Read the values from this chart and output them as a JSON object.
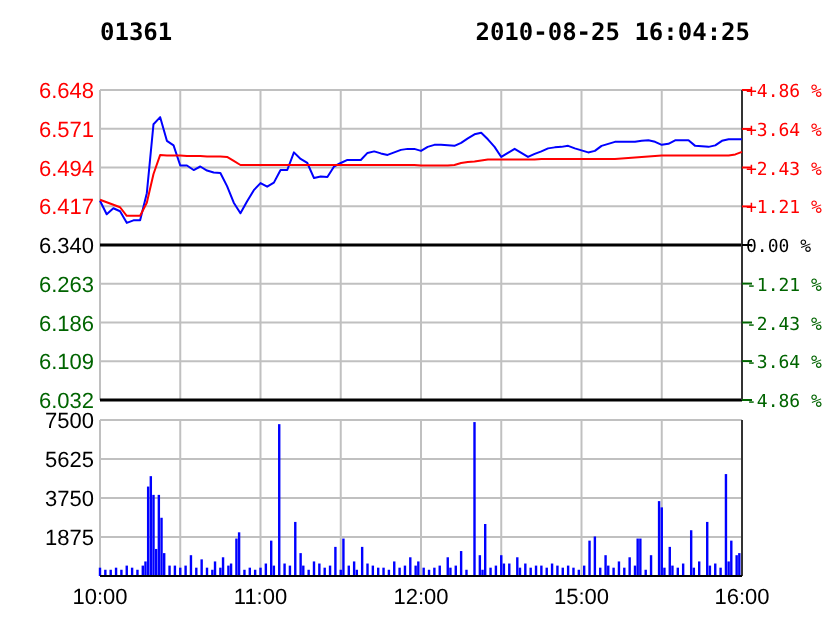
{
  "chart_data": [
    {
      "type": "line",
      "title": "01361",
      "annotations": [
        "2010-08-25 16:04:25"
      ],
      "tick_labels": "y",
      "grid": true,
      "categories": [
        null,
        null,
        null,
        null,
        null,
        null,
        null,
        null,
        null,
        null,
        null,
        null,
        null,
        null,
        null,
        null,
        null,
        null,
        null,
        null,
        null,
        null,
        null,
        null,
        null,
        null,
        null,
        null,
        null,
        null,
        null,
        null,
        null,
        null,
        null,
        null,
        null,
        null,
        null,
        null,
        null,
        null,
        null,
        null,
        null,
        null,
        null,
        null,
        null,
        null,
        null,
        null,
        null,
        null,
        null,
        null,
        null,
        null,
        null,
        null,
        null,
        null,
        null,
        null,
        null,
        null,
        null,
        null,
        null,
        null,
        null,
        null,
        null,
        null,
        null,
        null,
        null,
        null,
        null,
        null,
        null,
        null,
        null,
        null,
        null,
        null,
        null,
        null,
        null,
        null,
        null,
        null,
        null,
        null,
        null,
        null,
        null
      ],
      "ylim": [
        6.032,
        6.648
      ],
      "yticks": [
        6.032,
        6.109,
        6.186,
        6.263,
        {
          "value": 6.34,
          "label": "6.340"
        },
        6.417,
        6.494,
        6.571,
        6.648
      ],
      "y2lim": [
        -4.86,
        4.86
      ],
      "y2ticks": [
        {
          "value": -4.86,
          "label": "-4.86 %"
        },
        {
          "value": -3.64,
          "label": "-3.64 %"
        },
        {
          "value": -2.43,
          "label": "-2.43 %"
        },
        {
          "value": -1.21,
          "label": "-1.21 %"
        },
        {
          "value": 0,
          "label": "0.00 %"
        },
        {
          "value": 1.21,
          "label": "+1.21 %"
        },
        {
          "value": 2.43,
          "label": "+2.43 %"
        },
        {
          "value": 3.64,
          "label": "+3.64 %"
        },
        {
          "value": 4.86,
          "label": "+4.86 %"
        }
      ],
      "ref_lines": [
        {
          "axis": "y",
          "value": 6.34,
          "color": "#000000"
        }
      ],
      "series": [
        {
          "color": "#0000ff",
          "values": [
            6.428,
            6.401,
            6.413,
            6.407,
            6.384,
            6.389,
            6.389,
            6.443,
            6.58,
            6.594,
            6.547,
            6.538,
            6.498,
            6.498,
            6.489,
            6.496,
            6.488,
            6.484,
            6.483,
            6.457,
            6.424,
            6.403,
            6.427,
            6.449,
            6.463,
            6.456,
            6.464,
            6.489,
            6.489,
            6.524,
            6.511,
            6.503,
            6.473,
            6.476,
            6.475,
            6.496,
            6.503,
            6.509,
            6.509,
            6.509,
            6.523,
            6.526,
            6.522,
            6.519,
            6.524,
            6.529,
            6.531,
            6.531,
            6.527,
            6.535,
            6.539,
            6.539,
            6.538,
            6.537,
            6.543,
            6.552,
            6.56,
            6.563,
            6.55,
            6.535,
            6.515,
            6.523,
            6.531,
            6.523,
            6.515,
            6.521,
            6.526,
            6.532,
            6.534,
            6.535,
            6.537,
            6.532,
            6.528,
            6.524,
            6.527,
            6.537,
            6.541,
            6.545,
            6.545,
            6.545,
            6.545,
            6.547,
            6.548,
            6.545,
            6.539,
            6.541,
            6.548,
            6.548,
            6.548,
            6.537,
            6.536,
            6.535,
            6.538,
            6.547,
            6.55,
            6.55,
            6.55
          ]
        },
        {
          "color": "#ff0000",
          "values": [
            6.43,
            6.425,
            6.42,
            6.415,
            6.398,
            6.398,
            6.398,
            6.424,
            6.481,
            6.519,
            6.518,
            6.518,
            6.518,
            6.517,
            6.517,
            6.517,
            6.516,
            6.516,
            6.516,
            6.515,
            6.507,
            6.499,
            6.499,
            6.499,
            6.499,
            6.499,
            6.499,
            6.499,
            6.499,
            6.499,
            6.499,
            6.499,
            6.499,
            6.499,
            6.499,
            6.499,
            6.499,
            6.499,
            6.499,
            6.499,
            6.499,
            6.499,
            6.499,
            6.499,
            6.499,
            6.499,
            6.499,
            6.499,
            6.498,
            6.498,
            6.498,
            6.498,
            6.498,
            6.499,
            6.503,
            6.505,
            6.506,
            6.508,
            6.51,
            6.51,
            6.51,
            6.51,
            6.51,
            6.51,
            6.51,
            6.51,
            6.511,
            6.511,
            6.511,
            6.511,
            6.511,
            6.511,
            6.511,
            6.511,
            6.511,
            6.511,
            6.511,
            6.511,
            6.512,
            6.513,
            6.514,
            6.515,
            6.516,
            6.517,
            6.518,
            6.518,
            6.518,
            6.518,
            6.518,
            6.518,
            6.518,
            6.518,
            6.518,
            6.518,
            6.518,
            6.52,
            6.525
          ]
        }
      ]
    },
    {
      "type": "bar",
      "color": "#0000ff",
      "grid": true,
      "categories": [
        "10:00",
        null,
        null,
        null,
        null,
        null,
        null,
        null,
        null,
        null,
        null,
        null,
        null,
        null,
        null,
        null,
        null,
        null,
        null,
        null,
        null,
        null,
        null,
        null,
        null,
        null,
        null,
        null,
        null,
        null,
        null,
        null,
        null,
        null,
        null,
        null,
        null,
        null,
        null,
        null,
        null,
        null,
        null,
        null,
        null,
        null,
        null,
        null,
        null,
        null,
        null,
        null,
        null,
        null,
        null,
        null,
        null,
        null,
        null,
        null,
        "11:00",
        null,
        null,
        null,
        null,
        null,
        null,
        null,
        null,
        null,
        null,
        null,
        null,
        null,
        null,
        null,
        null,
        null,
        null,
        null,
        null,
        null,
        null,
        null,
        null,
        null,
        null,
        null,
        null,
        null,
        null,
        null,
        null,
        null,
        null,
        null,
        null,
        null,
        null,
        null,
        null,
        null,
        null,
        null,
        null,
        null,
        null,
        null,
        null,
        null,
        null,
        null,
        null,
        null,
        null,
        null,
        null,
        null,
        null,
        null,
        "12:00",
        null,
        null,
        null,
        null,
        null,
        null,
        null,
        null,
        null,
        null,
        null,
        null,
        null,
        null,
        null,
        null,
        null,
        null,
        null,
        null,
        null,
        null,
        null,
        null,
        null,
        null,
        null,
        null,
        null,
        null,
        null,
        null,
        null,
        null,
        null,
        null,
        null,
        null,
        null,
        null,
        null,
        null,
        null,
        null,
        null,
        null,
        null,
        null,
        null,
        null,
        null,
        null,
        null,
        null,
        null,
        null,
        null,
        null,
        null,
        "15:00",
        null,
        null,
        null,
        null,
        null,
        null,
        null,
        null,
        null,
        null,
        null,
        null,
        null,
        null,
        null,
        null,
        null,
        null,
        null,
        null,
        null,
        null,
        null,
        null,
        null,
        null,
        null,
        null,
        null,
        null,
        null,
        null,
        null,
        null,
        null,
        null,
        null,
        null,
        null,
        null,
        null,
        null,
        null,
        null,
        null,
        null,
        null,
        null,
        null,
        null,
        null,
        null,
        null,
        null,
        null,
        null,
        null,
        null,
        null,
        "16:00"
      ],
      "ylim": [
        0,
        7500
      ],
      "yticks": [
        1875,
        3750,
        5625,
        7500
      ],
      "values": [
        400,
        null,
        300,
        null,
        300,
        null,
        400,
        null,
        300,
        null,
        500,
        null,
        400,
        null,
        300,
        null,
        500,
        700,
        4300,
        4800,
        3900,
        1300,
        3900,
        2800,
        1100,
        null,
        500,
        null,
        500,
        null,
        400,
        null,
        500,
        null,
        1000,
        null,
        400,
        null,
        800,
        null,
        400,
        null,
        300,
        700,
        null,
        400,
        900,
        null,
        500,
        600,
        null,
        1800,
        2100,
        null,
        300,
        null,
        400,
        null,
        300,
        null,
        400,
        null,
        600,
        null,
        1700,
        500,
        null,
        7300,
        null,
        600,
        null,
        500,
        null,
        2600,
        null,
        1100,
        500,
        null,
        300,
        null,
        700,
        null,
        600,
        null,
        400,
        null,
        500,
        null,
        1400,
        null,
        300,
        1800,
        null,
        500,
        null,
        700,
        300,
        null,
        1400,
        null,
        600,
        null,
        500,
        null,
        400,
        null,
        400,
        null,
        300,
        null,
        700,
        null,
        400,
        null,
        500,
        null,
        900,
        null,
        500,
        700,
        null,
        400,
        null,
        300,
        null,
        400,
        null,
        500,
        null,
        null,
        900,
        400,
        null,
        500,
        null,
        1200,
        null,
        300,
        null,
        null,
        7400,
        null,
        1000,
        300,
        2500,
        null,
        400,
        null,
        500,
        null,
        1000,
        600,
        null,
        600,
        null,
        null,
        900,
        400,
        null,
        600,
        null,
        400,
        null,
        500,
        null,
        500,
        null,
        400,
        null,
        600,
        null,
        500,
        null,
        400,
        null,
        500,
        null,
        400,
        null,
        300,
        null,
        500,
        null,
        1700,
        null,
        1900,
        null,
        400,
        null,
        1000,
        500,
        null,
        400,
        null,
        700,
        null,
        400,
        null,
        900,
        null,
        500,
        1800,
        1800,
        null,
        300,
        null,
        1000,
        null,
        null,
        3600,
        3300,
        400,
        null,
        1400,
        500,
        null,
        400,
        null,
        600,
        null,
        null,
        2200,
        400,
        null,
        700,
        null,
        null,
        2600,
        500,
        null,
        600,
        null,
        400,
        null,
        4900,
        700,
        1700,
        null,
        1000,
        1100,
        null
      ]
    }
  ]
}
